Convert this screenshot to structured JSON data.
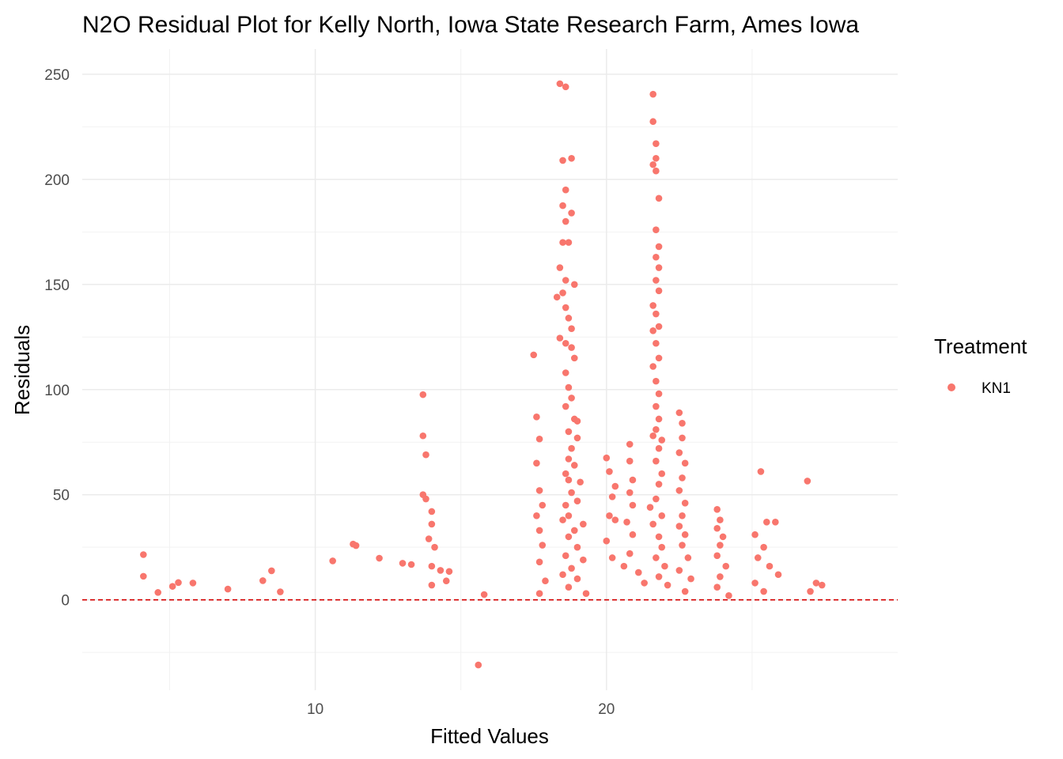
{
  "chart_data": {
    "type": "scatter",
    "title": "N2O Residual Plot for Kelly North, Iowa State Research Farm, Ames Iowa",
    "xlabel": "Fitted Values",
    "ylabel": "Residuals",
    "xlim": [
      2,
      30
    ],
    "ylim": [
      -43,
      262
    ],
    "x_ticks": [
      10,
      20
    ],
    "x_tick_labels": [
      "10",
      "20"
    ],
    "y_ticks": [
      0,
      50,
      100,
      150,
      200,
      250
    ],
    "y_tick_labels": [
      "0",
      "50",
      "100",
      "150",
      "200",
      "250"
    ],
    "grid": true,
    "reference_line": {
      "y": 0,
      "style": "dashed",
      "color": "#d40000"
    },
    "point_color": "#f8766d",
    "legend": {
      "title": "Treatment",
      "position": "right",
      "entries": [
        "KN1"
      ]
    },
    "series": [
      {
        "name": "KN1",
        "points": [
          [
            4.1,
            21.5
          ],
          [
            4.1,
            11.2
          ],
          [
            4.6,
            3.5
          ],
          [
            5.1,
            6.4
          ],
          [
            5.3,
            8.2
          ],
          [
            5.8,
            8.0
          ],
          [
            7.0,
            5.1
          ],
          [
            8.2,
            9.1
          ],
          [
            8.5,
            13.8
          ],
          [
            8.8,
            3.8
          ],
          [
            10.6,
            18.5
          ],
          [
            11.3,
            26.5
          ],
          [
            11.4,
            25.8
          ],
          [
            12.2,
            19.8
          ],
          [
            13.0,
            17.4
          ],
          [
            13.3,
            16.8
          ],
          [
            13.7,
            97.6
          ],
          [
            13.7,
            78.0
          ],
          [
            13.8,
            69.0
          ],
          [
            13.7,
            50.0
          ],
          [
            13.8,
            48.0
          ],
          [
            14.0,
            42.0
          ],
          [
            14.0,
            36.0
          ],
          [
            13.9,
            29.0
          ],
          [
            14.1,
            25.0
          ],
          [
            14.0,
            16.0
          ],
          [
            14.3,
            14.0
          ],
          [
            14.6,
            13.5
          ],
          [
            14.0,
            7.0
          ],
          [
            14.5,
            9.0
          ],
          [
            15.6,
            -31.0
          ],
          [
            15.8,
            2.5
          ],
          [
            17.5,
            116.5
          ],
          [
            17.6,
            87.0
          ],
          [
            17.7,
            76.5
          ],
          [
            17.6,
            65.0
          ],
          [
            17.7,
            52.0
          ],
          [
            17.8,
            45.0
          ],
          [
            17.6,
            40.0
          ],
          [
            17.7,
            33.0
          ],
          [
            17.8,
            26.0
          ],
          [
            17.7,
            18.0
          ],
          [
            17.9,
            9.0
          ],
          [
            17.7,
            3.0
          ],
          [
            18.4,
            245.5
          ],
          [
            18.6,
            244.0
          ],
          [
            18.5,
            209.0
          ],
          [
            18.8,
            210.0
          ],
          [
            18.6,
            195.0
          ],
          [
            18.5,
            187.5
          ],
          [
            18.6,
            180.0
          ],
          [
            18.8,
            184.0
          ],
          [
            18.5,
            170.0
          ],
          [
            18.7,
            170.0
          ],
          [
            18.4,
            158.0
          ],
          [
            18.6,
            152.0
          ],
          [
            18.5,
            146.0
          ],
          [
            18.9,
            150.0
          ],
          [
            18.3,
            144.0
          ],
          [
            18.6,
            139.0
          ],
          [
            18.7,
            134.0
          ],
          [
            18.8,
            129.0
          ],
          [
            18.4,
            124.5
          ],
          [
            18.6,
            122.0
          ],
          [
            18.8,
            120.0
          ],
          [
            18.9,
            115.0
          ],
          [
            18.6,
            108.0
          ],
          [
            18.7,
            101.0
          ],
          [
            18.8,
            96.0
          ],
          [
            18.6,
            92.0
          ],
          [
            18.9,
            86.0
          ],
          [
            19.0,
            85.0
          ],
          [
            18.7,
            80.0
          ],
          [
            19.0,
            77.0
          ],
          [
            18.8,
            72.0
          ],
          [
            18.7,
            67.0
          ],
          [
            18.9,
            64.0
          ],
          [
            18.6,
            60.0
          ],
          [
            18.7,
            57.0
          ],
          [
            19.1,
            56.0
          ],
          [
            18.8,
            51.0
          ],
          [
            18.6,
            45.0
          ],
          [
            19.0,
            47.0
          ],
          [
            18.7,
            40.0
          ],
          [
            18.5,
            38.0
          ],
          [
            19.2,
            36.0
          ],
          [
            18.9,
            33.0
          ],
          [
            18.7,
            30.0
          ],
          [
            19.0,
            25.0
          ],
          [
            18.6,
            21.0
          ],
          [
            19.2,
            19.0
          ],
          [
            18.8,
            15.0
          ],
          [
            18.5,
            12.0
          ],
          [
            19.0,
            10.0
          ],
          [
            18.7,
            6.0
          ],
          [
            19.3,
            3.0
          ],
          [
            20.0,
            67.5
          ],
          [
            20.1,
            61.0
          ],
          [
            20.3,
            54.0
          ],
          [
            20.2,
            49.0
          ],
          [
            20.1,
            40.0
          ],
          [
            20.3,
            38.0
          ],
          [
            20.0,
            28.0
          ],
          [
            20.2,
            20.0
          ],
          [
            20.8,
            74.0
          ],
          [
            20.8,
            66.0
          ],
          [
            20.9,
            57.0
          ],
          [
            20.8,
            51.0
          ],
          [
            20.9,
            45.0
          ],
          [
            20.7,
            37.0
          ],
          [
            20.9,
            31.0
          ],
          [
            20.8,
            22.0
          ],
          [
            21.1,
            13.0
          ],
          [
            20.6,
            16.0
          ],
          [
            21.3,
            8.0
          ],
          [
            21.6,
            240.5
          ],
          [
            21.6,
            227.5
          ],
          [
            21.7,
            217.0
          ],
          [
            21.7,
            210.0
          ],
          [
            21.6,
            207.0
          ],
          [
            21.7,
            204.0
          ],
          [
            21.8,
            191.0
          ],
          [
            21.7,
            176.0
          ],
          [
            21.8,
            168.0
          ],
          [
            21.7,
            163.0
          ],
          [
            21.8,
            158.0
          ],
          [
            21.7,
            152.0
          ],
          [
            21.8,
            147.0
          ],
          [
            21.6,
            140.0
          ],
          [
            21.7,
            136.0
          ],
          [
            21.8,
            130.0
          ],
          [
            21.6,
            128.0
          ],
          [
            21.7,
            122.0
          ],
          [
            21.8,
            115.0
          ],
          [
            21.6,
            111.0
          ],
          [
            21.7,
            104.0
          ],
          [
            21.8,
            98.0
          ],
          [
            21.7,
            92.0
          ],
          [
            21.8,
            86.0
          ],
          [
            21.7,
            81.0
          ],
          [
            21.9,
            76.0
          ],
          [
            21.6,
            78.0
          ],
          [
            21.8,
            72.0
          ],
          [
            21.7,
            66.0
          ],
          [
            21.9,
            60.0
          ],
          [
            21.8,
            55.0
          ],
          [
            21.7,
            48.0
          ],
          [
            21.5,
            44.0
          ],
          [
            21.9,
            40.0
          ],
          [
            21.6,
            36.0
          ],
          [
            21.8,
            30.0
          ],
          [
            21.9,
            25.0
          ],
          [
            21.7,
            20.0
          ],
          [
            22.0,
            16.0
          ],
          [
            21.8,
            11.0
          ],
          [
            22.1,
            7.0
          ],
          [
            22.5,
            89.0
          ],
          [
            22.6,
            84.0
          ],
          [
            22.6,
            77.0
          ],
          [
            22.5,
            70.0
          ],
          [
            22.7,
            65.0
          ],
          [
            22.6,
            58.0
          ],
          [
            22.5,
            52.0
          ],
          [
            22.7,
            46.0
          ],
          [
            22.6,
            40.0
          ],
          [
            22.5,
            35.0
          ],
          [
            22.7,
            31.0
          ],
          [
            22.6,
            26.0
          ],
          [
            22.8,
            20.0
          ],
          [
            22.5,
            14.0
          ],
          [
            22.9,
            10.0
          ],
          [
            22.7,
            4.0
          ],
          [
            23.8,
            43.0
          ],
          [
            23.9,
            38.0
          ],
          [
            23.8,
            34.0
          ],
          [
            24.0,
            30.0
          ],
          [
            23.9,
            26.0
          ],
          [
            23.8,
            21.0
          ],
          [
            24.1,
            16.0
          ],
          [
            23.9,
            11.0
          ],
          [
            23.8,
            6.0
          ],
          [
            24.2,
            2.0
          ],
          [
            25.3,
            61.0
          ],
          [
            25.1,
            31.0
          ],
          [
            25.5,
            37.0
          ],
          [
            25.8,
            37.0
          ],
          [
            25.4,
            25.0
          ],
          [
            25.2,
            20.0
          ],
          [
            25.6,
            16.0
          ],
          [
            25.9,
            12.0
          ],
          [
            25.1,
            8.0
          ],
          [
            25.4,
            4.0
          ],
          [
            26.9,
            56.5
          ],
          [
            27.2,
            8.0
          ],
          [
            27.4,
            7.0
          ],
          [
            27.0,
            4.0
          ]
        ]
      }
    ]
  }
}
